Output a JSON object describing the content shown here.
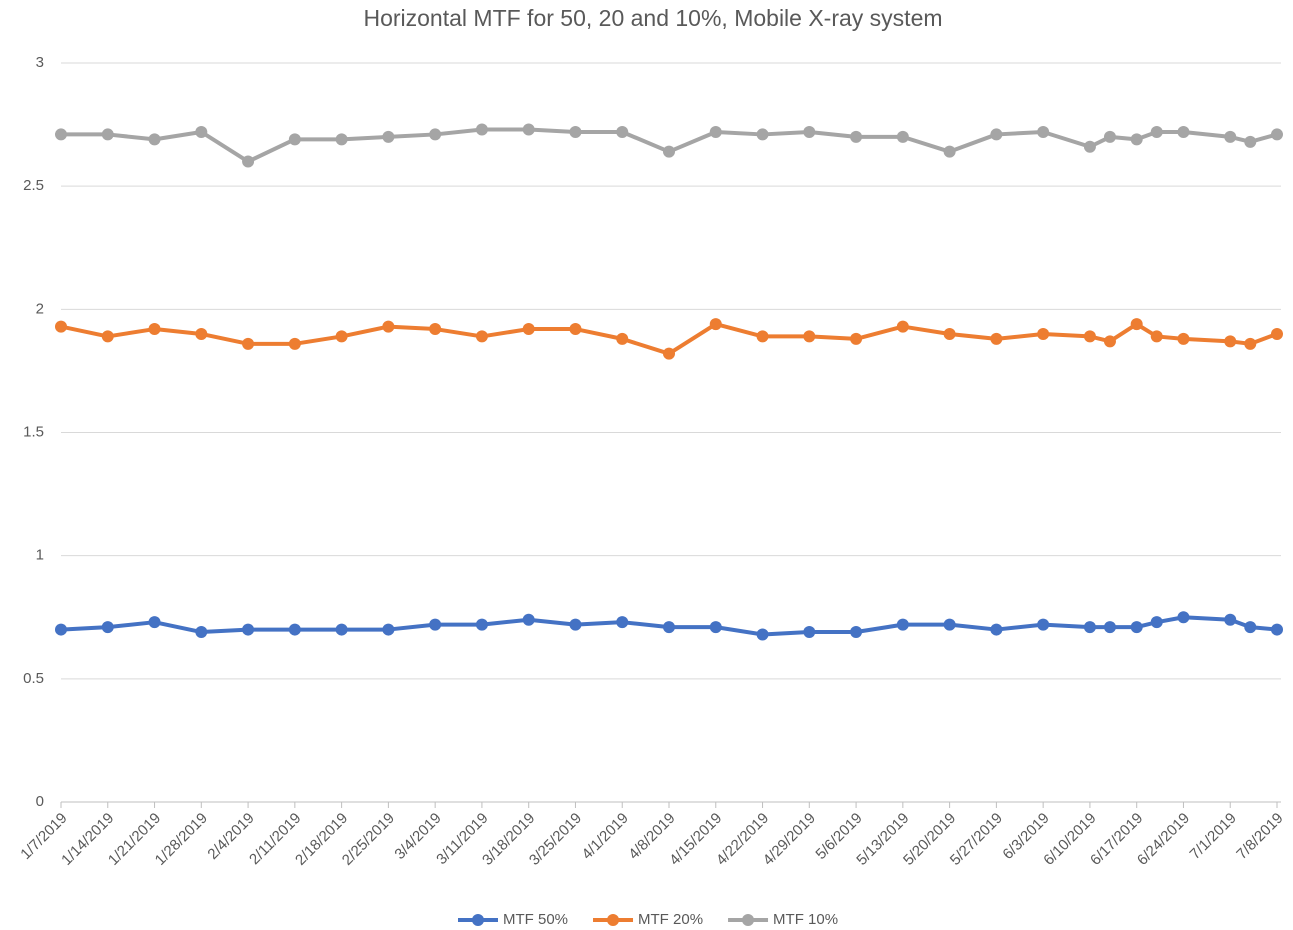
{
  "chart_data": {
    "type": "line",
    "title": "Horizontal MTF for 50, 20 and 10%, Mobile X-ray system",
    "x": [
      "1/7/2019",
      "1/14/2019",
      "1/21/2019",
      "1/28/2019",
      "2/4/2019",
      "2/11/2019",
      "2/18/2019",
      "2/25/2019",
      "3/4/2019",
      "3/11/2019",
      "3/18/2019",
      "3/25/2019",
      "4/1/2019",
      "4/8/2019",
      "4/15/2019",
      "4/22/2019",
      "4/29/2019",
      "5/6/2019",
      "5/13/2019",
      "5/20/2019",
      "5/27/2019",
      "6/3/2019",
      "6/10/2019",
      "6/13/2019",
      "6/17/2019",
      "6/20/2019",
      "6/24/2019",
      "7/1/2019",
      "7/4/2019",
      "7/8/2019"
    ],
    "series": [
      {
        "name": "MTF 50%",
        "color": "#4472c4",
        "values": [
          0.7,
          0.71,
          0.73,
          0.69,
          0.7,
          0.7,
          0.7,
          0.7,
          0.72,
          0.72,
          0.74,
          0.72,
          0.73,
          0.71,
          0.71,
          0.68,
          0.69,
          0.69,
          0.72,
          0.72,
          0.7,
          0.72,
          0.71,
          0.71,
          0.71,
          0.73,
          0.75,
          0.74,
          0.71,
          0.7
        ]
      },
      {
        "name": "MTF 20%",
        "color": "#ed7d31",
        "values": [
          1.93,
          1.89,
          1.92,
          1.9,
          1.86,
          1.86,
          1.89,
          1.93,
          1.92,
          1.89,
          1.92,
          1.92,
          1.88,
          1.82,
          1.94,
          1.89,
          1.89,
          1.88,
          1.93,
          1.9,
          1.88,
          1.9,
          1.89,
          1.87,
          1.94,
          1.89,
          1.88,
          1.87,
          1.86,
          1.9
        ]
      },
      {
        "name": "MTF 10%",
        "color": "#a5a5a5",
        "values": [
          2.71,
          2.71,
          2.69,
          2.72,
          2.6,
          2.69,
          2.69,
          2.7,
          2.71,
          2.73,
          2.73,
          2.72,
          2.72,
          2.64,
          2.72,
          2.71,
          2.72,
          2.7,
          2.7,
          2.64,
          2.71,
          2.72,
          2.66,
          2.7,
          2.69,
          2.72,
          2.72,
          2.7,
          2.68,
          2.71
        ]
      }
    ],
    "xlim": [
      "1/7/2019",
      "7/8/2019"
    ],
    "xticks": [
      "1/7/2019",
      "1/14/2019",
      "1/21/2019",
      "1/28/2019",
      "2/4/2019",
      "2/11/2019",
      "2/18/2019",
      "2/25/2019",
      "3/4/2019",
      "3/11/2019",
      "3/18/2019",
      "3/25/2019",
      "4/1/2019",
      "4/8/2019",
      "4/15/2019",
      "4/22/2019",
      "4/29/2019",
      "5/6/2019",
      "5/13/2019",
      "5/20/2019",
      "5/27/2019",
      "6/3/2019",
      "6/10/2019",
      "6/17/2019",
      "6/24/2019",
      "7/1/2019",
      "7/8/2019"
    ],
    "ylim": [
      0,
      3
    ],
    "yticks": [
      0,
      0.5,
      1,
      1.5,
      2,
      2.5,
      3
    ],
    "grid": true,
    "legend": "bottom"
  }
}
